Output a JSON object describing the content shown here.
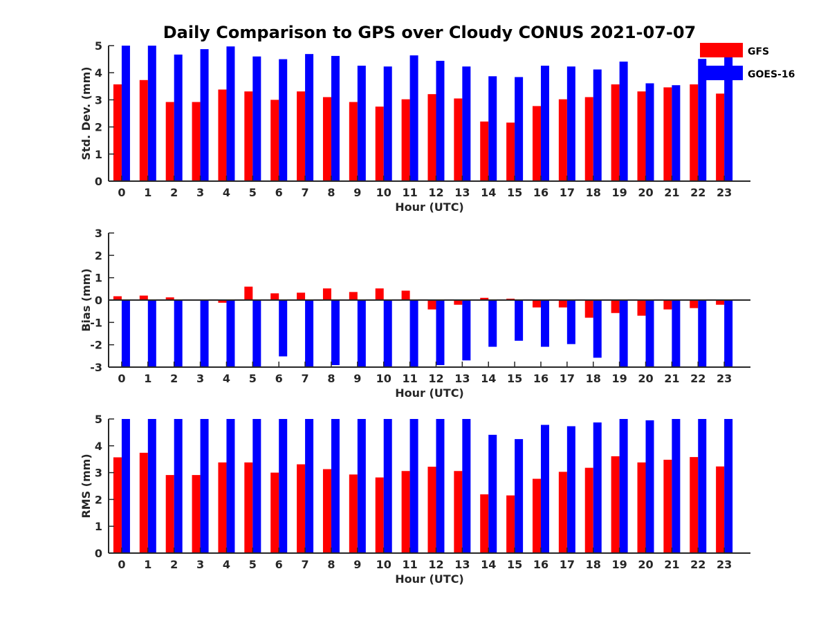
{
  "title": "Daily Comparison to GPS over Cloudy CONUS 2021-07-07",
  "legend": {
    "placement": "top-right",
    "items": [
      {
        "label": "GFS",
        "color": "#ff0000"
      },
      {
        "label": "GOES-16",
        "color": "#0000ff"
      }
    ]
  },
  "chart_data": [
    {
      "type": "bar",
      "xlabel": "Hour (UTC)",
      "ylabel": "Std. Dev. (mm)",
      "ylim": [
        0,
        5
      ],
      "yticks": [
        0,
        1,
        2,
        3,
        4,
        5
      ],
      "categories": [
        "0",
        "1",
        "2",
        "3",
        "4",
        "5",
        "6",
        "7",
        "8",
        "9",
        "10",
        "11",
        "12",
        "13",
        "14",
        "15",
        "16",
        "17",
        "18",
        "19",
        "20",
        "21",
        "22",
        "23"
      ],
      "series": [
        {
          "name": "GFS",
          "color": "#ff0000",
          "values": [
            3.57,
            3.73,
            2.92,
            2.92,
            3.38,
            3.31,
            3.0,
            3.31,
            3.1,
            2.92,
            2.75,
            3.02,
            3.21,
            3.05,
            2.2,
            2.16,
            2.77,
            3.02,
            3.1,
            3.57,
            3.31,
            3.46,
            3.57,
            3.23
          ]
        },
        {
          "name": "GOES-16",
          "color": "#0000ff",
          "values": [
            5.0,
            5.0,
            4.67,
            4.87,
            4.97,
            4.6,
            4.5,
            4.69,
            4.62,
            4.26,
            4.23,
            4.64,
            4.44,
            4.23,
            3.87,
            3.84,
            4.26,
            4.23,
            4.12,
            4.41,
            3.61,
            3.54,
            4.51,
            4.7
          ]
        }
      ]
    },
    {
      "type": "bar",
      "xlabel": "Hour (UTC)",
      "ylabel": "Bias (mm)",
      "ylim": [
        -3,
        3
      ],
      "yticks": [
        -3,
        -2,
        -1,
        0,
        1,
        2,
        3
      ],
      "categories": [
        "0",
        "1",
        "2",
        "3",
        "4",
        "5",
        "6",
        "7",
        "8",
        "9",
        "10",
        "11",
        "12",
        "13",
        "14",
        "15",
        "16",
        "17",
        "18",
        "19",
        "20",
        "21",
        "22",
        "23"
      ],
      "series": [
        {
          "name": "GFS",
          "color": "#ff0000",
          "values": [
            0.17,
            0.2,
            0.12,
            -0.03,
            -0.12,
            0.6,
            0.3,
            0.33,
            0.52,
            0.36,
            0.52,
            0.42,
            -0.42,
            -0.21,
            0.1,
            0.06,
            -0.33,
            -0.33,
            -0.79,
            -0.58,
            -0.7,
            -0.42,
            -0.36,
            -0.21
          ]
        },
        {
          "name": "GOES-16",
          "color": "#0000ff",
          "values": [
            -3.0,
            -3.0,
            -3.0,
            -3.0,
            -3.0,
            -3.0,
            -2.52,
            -3.0,
            -2.91,
            -3.0,
            -3.0,
            -3.0,
            -2.91,
            -2.7,
            -2.09,
            -1.82,
            -2.09,
            -1.97,
            -2.58,
            -3.0,
            -3.0,
            -3.0,
            -3.0,
            -3.0
          ]
        }
      ]
    },
    {
      "type": "bar",
      "xlabel": "Hour (UTC)",
      "ylabel": "RMS (mm)",
      "ylim": [
        0,
        5
      ],
      "yticks": [
        0,
        1,
        2,
        3,
        4,
        5
      ],
      "categories": [
        "0",
        "1",
        "2",
        "3",
        "4",
        "5",
        "6",
        "7",
        "8",
        "9",
        "10",
        "11",
        "12",
        "13",
        "14",
        "15",
        "16",
        "17",
        "18",
        "19",
        "20",
        "21",
        "22",
        "23"
      ],
      "series": [
        {
          "name": "GFS",
          "color": "#ff0000",
          "values": [
            3.57,
            3.74,
            2.91,
            2.91,
            3.38,
            3.38,
            3.0,
            3.31,
            3.13,
            2.93,
            2.82,
            3.06,
            3.22,
            3.06,
            2.19,
            2.15,
            2.77,
            3.03,
            3.18,
            3.61,
            3.38,
            3.48,
            3.58,
            3.23
          ]
        },
        {
          "name": "GOES-16",
          "color": "#0000ff",
          "values": [
            5.0,
            5.0,
            5.0,
            5.0,
            5.0,
            5.0,
            5.0,
            5.0,
            5.0,
            5.0,
            5.0,
            5.0,
            5.0,
            5.0,
            4.41,
            4.25,
            4.78,
            4.73,
            4.87,
            5.0,
            4.95,
            5.0,
            5.0,
            5.0
          ]
        }
      ]
    }
  ]
}
